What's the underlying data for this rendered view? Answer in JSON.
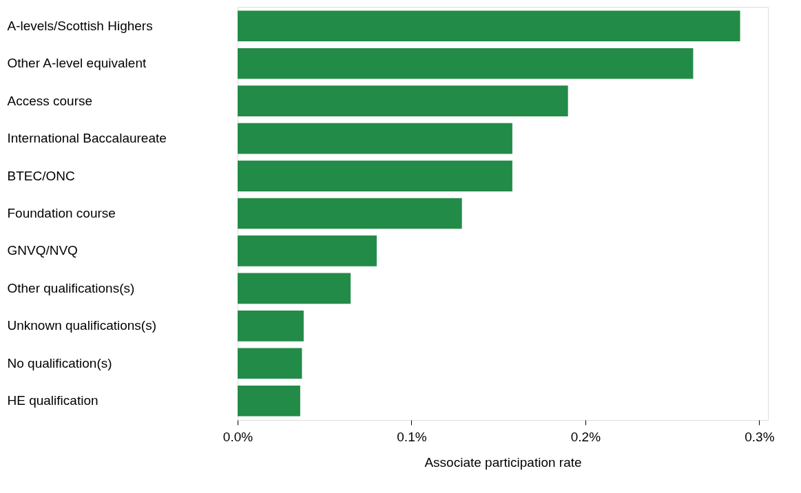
{
  "chart_data": {
    "type": "bar",
    "orientation": "horizontal",
    "xlabel": "Associate participation rate",
    "categories": [
      "A-levels/Scottish Highers",
      "Other A-level equivalent",
      "Access course",
      "International Baccalaureate",
      "BTEC/ONC",
      "Foundation course",
      "GNVQ/NVQ",
      "Other qualifications(s)",
      "Unknown qualifications(s)",
      "No qualification(s)",
      "HE qualification"
    ],
    "values": [
      0.289,
      0.262,
      0.19,
      0.158,
      0.158,
      0.129,
      0.08,
      0.065,
      0.038,
      0.037,
      0.036
    ],
    "color": "#238b48",
    "xlim": [
      0,
      0.305
    ],
    "xticks": [
      {
        "value": 0,
        "label": "0.0%"
      },
      {
        "value": 0.1,
        "label": "0.1%"
      },
      {
        "value": 0.2,
        "label": "0.2%"
      },
      {
        "value": 0.3,
        "label": "0.3%"
      }
    ],
    "grid": false
  }
}
